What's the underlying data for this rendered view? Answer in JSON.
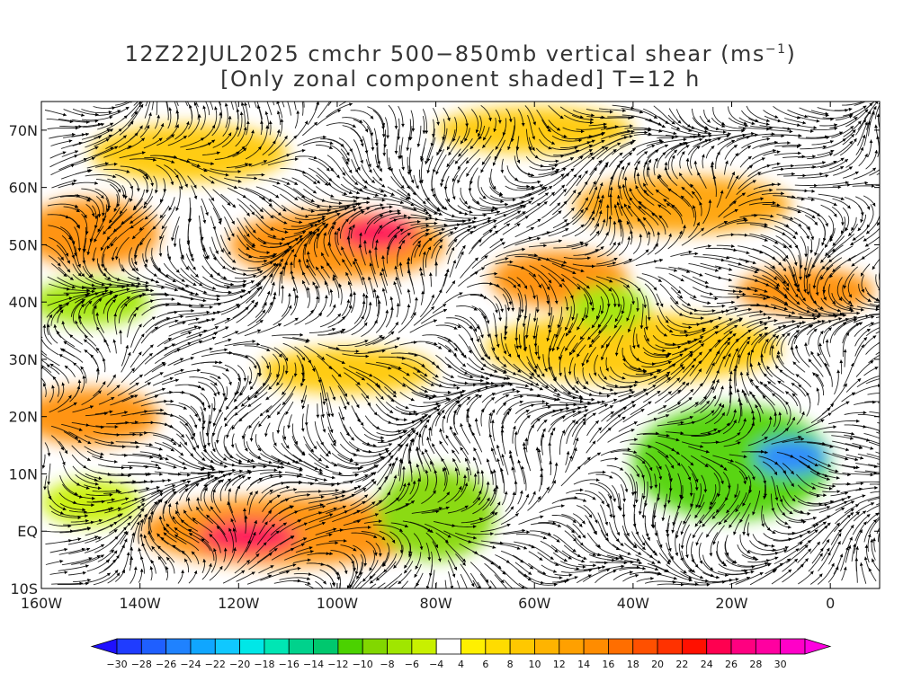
{
  "title": {
    "line1_main": "12Z22JUL2025 cmchr 500−850mb vertical shear (ms",
    "line1_sup": "−1",
    "line1_end": ")",
    "line2": "[Only zonal component shaded] T=12 h"
  },
  "map": {
    "lon_range": [
      -160,
      10
    ],
    "lat_range": [
      -10,
      75
    ],
    "x_ticks": [
      {
        "lon": -160,
        "label": "160W"
      },
      {
        "lon": -140,
        "label": "140W"
      },
      {
        "lon": -120,
        "label": "120W"
      },
      {
        "lon": -100,
        "label": "100W"
      },
      {
        "lon": -80,
        "label": "80W"
      },
      {
        "lon": -60,
        "label": "60W"
      },
      {
        "lon": -40,
        "label": "40W"
      },
      {
        "lon": -20,
        "label": "20W"
      },
      {
        "lon": 0,
        "label": "0"
      }
    ],
    "y_ticks": [
      {
        "lat": 70,
        "label": "70N"
      },
      {
        "lat": 60,
        "label": "60N"
      },
      {
        "lat": 50,
        "label": "50N"
      },
      {
        "lat": 40,
        "label": "40N"
      },
      {
        "lat": 30,
        "label": "30N"
      },
      {
        "lat": 20,
        "label": "20N"
      },
      {
        "lat": 10,
        "label": "10N"
      },
      {
        "lat": 0,
        "label": "EQ"
      },
      {
        "lat": -10,
        "label": "10S"
      }
    ],
    "shading": [
      {
        "lon": -150,
        "lat": 52,
        "rx": 14,
        "ry": 6,
        "value": 14
      },
      {
        "lon": -100,
        "lat": 50,
        "rx": 22,
        "ry": 6,
        "value": 14
      },
      {
        "lon": -92,
        "lat": 52,
        "rx": 8,
        "ry": 3,
        "value": 24
      },
      {
        "lon": -55,
        "lat": 44,
        "rx": 14,
        "ry": 5,
        "value": 14
      },
      {
        "lon": -30,
        "lat": 57,
        "rx": 22,
        "ry": 5,
        "value": 12
      },
      {
        "lon": -5,
        "lat": 42,
        "rx": 14,
        "ry": 4,
        "value": 14
      },
      {
        "lon": -150,
        "lat": 20,
        "rx": 14,
        "ry": 5,
        "value": 14
      },
      {
        "lon": -110,
        "lat": 0,
        "rx": 30,
        "ry": 6,
        "value": 14
      },
      {
        "lon": -118,
        "lat": -1,
        "rx": 10,
        "ry": 3,
        "value": 24
      },
      {
        "lon": -40,
        "lat": 32,
        "rx": 30,
        "ry": 6,
        "value": 8
      },
      {
        "lon": -20,
        "lat": 12,
        "rx": 20,
        "ry": 10,
        "value": -12
      },
      {
        "lon": -8,
        "lat": 13,
        "rx": 7,
        "ry": 3,
        "value": -26
      },
      {
        "lon": -80,
        "lat": 3,
        "rx": 12,
        "ry": 8,
        "value": -10
      },
      {
        "lon": -150,
        "lat": 40,
        "rx": 12,
        "ry": 4,
        "value": -8
      },
      {
        "lon": -45,
        "lat": 39,
        "rx": 8,
        "ry": 4,
        "value": -8
      },
      {
        "lon": -98,
        "lat": 28,
        "rx": 18,
        "ry": 4,
        "value": 8
      },
      {
        "lon": -130,
        "lat": 66,
        "rx": 20,
        "ry": 5,
        "value": 8
      },
      {
        "lon": -60,
        "lat": 70,
        "rx": 20,
        "ry": 4,
        "value": 8
      },
      {
        "lon": -150,
        "lat": 5,
        "rx": 10,
        "ry": 4,
        "value": -6
      }
    ]
  },
  "colorbar": {
    "colors": [
      "#1f10ff",
      "#1f3cff",
      "#1f5fff",
      "#1f82ff",
      "#10a6ff",
      "#10c8ff",
      "#00e7e7",
      "#00e6b4",
      "#00d28c",
      "#00c86e",
      "#4bd200",
      "#82d700",
      "#a0e600",
      "#c8f000",
      "#ffffff",
      "#fff000",
      "#ffdc00",
      "#ffc800",
      "#ffb400",
      "#ffa000",
      "#ff8c00",
      "#ff6e00",
      "#ff5000",
      "#ff3200",
      "#ff1000",
      "#ff0050",
      "#ff0080",
      "#ff00a0",
      "#ff00c8",
      "#ff00e0"
    ],
    "labels": [
      "−30",
      "−28",
      "−26",
      "−24",
      "−22",
      "−20",
      "−18",
      "−16",
      "−14",
      "−12",
      "−10",
      "−8",
      "−6",
      "−4",
      "4",
      "6",
      "8",
      "10",
      "12",
      "14",
      "16",
      "18",
      "20",
      "22",
      "24",
      "26",
      "28",
      "30"
    ]
  }
}
